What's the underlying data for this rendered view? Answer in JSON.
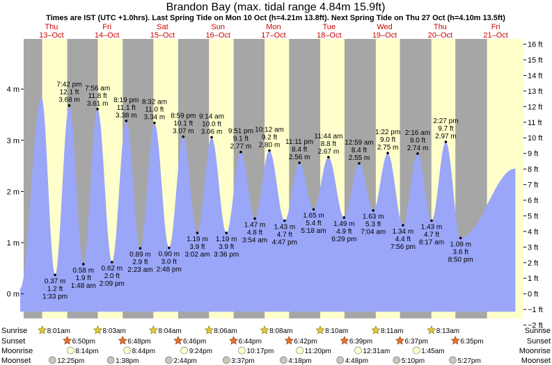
{
  "chart_data": {
    "type": "area",
    "title": "Brandon Bay (max. tidal range 4.84m 15.9ft)",
    "subtitle": "Times are IST (UTC +1.0hrs). Last Spring Tide on Mon 10 Oct (h=4.21m 13.8ft). Next Spring Tide on Thu 27 Oct (h=4.10m 13.5ft)",
    "colors": {
      "night": "#a6a6a6",
      "day": "#ffffcc",
      "tide": "#9aa6f8",
      "date": "#cc0000"
    },
    "x_domain_hours": [
      0,
      216
    ],
    "ylim_m": [
      -0.48,
      4.98
    ],
    "y_ticks_m": [
      {
        "v": 0,
        "label": "0 m"
      },
      {
        "v": 1,
        "label": "1 m"
      },
      {
        "v": 2,
        "label": "2 m"
      },
      {
        "v": 3,
        "label": "3 m"
      },
      {
        "v": 4,
        "label": "4 m"
      }
    ],
    "y_ticks_ft": [
      {
        "v": -2,
        "label": "−2 ft"
      },
      {
        "v": -1,
        "label": "−1 ft"
      },
      {
        "v": 0,
        "label": "0 ft"
      },
      {
        "v": 1,
        "label": "1 ft"
      },
      {
        "v": 2,
        "label": "2 ft"
      },
      {
        "v": 3,
        "label": "3 ft"
      },
      {
        "v": 4,
        "label": "4 ft"
      },
      {
        "v": 5,
        "label": "5 ft"
      },
      {
        "v": 6,
        "label": "6 ft"
      },
      {
        "v": 7,
        "label": "7 ft"
      },
      {
        "v": 8,
        "label": "8 ft"
      },
      {
        "v": 9,
        "label": "9 ft"
      },
      {
        "v": 10,
        "label": "10 ft"
      },
      {
        "v": 11,
        "label": "11 ft"
      },
      {
        "v": 12,
        "label": "12 ft"
      },
      {
        "v": 13,
        "label": "13 ft"
      },
      {
        "v": 14,
        "label": "14 ft"
      },
      {
        "v": 15,
        "label": "15 ft"
      },
      {
        "v": 16,
        "label": "16 ft"
      }
    ],
    "days": [
      {
        "day": "Thu",
        "date": "13–Oct",
        "noon": 12
      },
      {
        "day": "Fri",
        "date": "14–Oct",
        "noon": 36
      },
      {
        "day": "Sat",
        "date": "15–Oct",
        "noon": 60
      },
      {
        "day": "Sun",
        "date": "16–Oct",
        "noon": 84
      },
      {
        "day": "Mon",
        "date": "17–Oct",
        "noon": 108
      },
      {
        "day": "Tue",
        "date": "18–Oct",
        "noon": 132
      },
      {
        "day": "Wed",
        "date": "19–Oct",
        "noon": 156
      },
      {
        "day": "Thu",
        "date": "20–Oct",
        "noon": 180
      },
      {
        "day": "Fri",
        "date": "21–Oct",
        "noon": 204
      }
    ],
    "daylight_hours": [
      [
        8.0,
        18.82
      ],
      [
        32.05,
        42.8
      ],
      [
        56.07,
        66.77
      ],
      [
        80.1,
        90.73
      ],
      [
        104.13,
        114.7
      ],
      [
        128.17,
        138.65
      ],
      [
        152.18,
        162.62
      ],
      [
        176.22,
        186.58
      ],
      [
        200.25,
        216
      ]
    ],
    "tide_start": {
      "t": -1.5,
      "h": 0.1
    },
    "tide_end": {
      "t": 212.5,
      "h": 2.45
    },
    "tides": [
      {
        "t": 7.7,
        "h": 3.84,
        "show_label": false
      },
      {
        "t": 13.55,
        "h": 0.37,
        "m": "0.37 m",
        "ft": "1.2 ft",
        "time": "1:33 pm",
        "kind": "low"
      },
      {
        "t": 19.7,
        "h": 3.68,
        "m": "3.68 m",
        "ft": "12.1 ft",
        "time": "7:42 pm",
        "kind": "high"
      },
      {
        "t": 25.8,
        "h": 0.58,
        "m": "0.58 m",
        "ft": "1.9 ft",
        "time": "1:48 am",
        "kind": "low"
      },
      {
        "t": 31.93,
        "h": 3.61,
        "m": "3.61 m",
        "ft": "11.8 ft",
        "time": "7:56 am",
        "kind": "high"
      },
      {
        "t": 38.15,
        "h": 0.62,
        "m": "0.62 m",
        "ft": "2.0 ft",
        "time": "2:09 pm",
        "kind": "low"
      },
      {
        "t": 44.32,
        "h": 3.38,
        "m": "3.38 m",
        "ft": "11.1 ft",
        "time": "8:19 pm",
        "kind": "high"
      },
      {
        "t": 50.38,
        "h": 0.89,
        "m": "0.89 m",
        "ft": "2.9 ft",
        "time": "2:23 am",
        "kind": "low"
      },
      {
        "t": 56.53,
        "h": 3.34,
        "m": "3.34 m",
        "ft": "11.0 ft",
        "time": "8:32 am",
        "kind": "high"
      },
      {
        "t": 62.8,
        "h": 0.9,
        "m": "0.90 m",
        "ft": "3.0 ft",
        "time": "2:48 pm",
        "kind": "low"
      },
      {
        "t": 68.98,
        "h": 3.07,
        "m": "3.07 m",
        "ft": "10.1 ft",
        "time": "8:59 pm",
        "kind": "high"
      },
      {
        "t": 75.03,
        "h": 1.19,
        "m": "1.19 m",
        "ft": "3.9 ft",
        "time": "3:02 am",
        "kind": "low"
      },
      {
        "t": 81.23,
        "h": 3.06,
        "m": "3.06 m",
        "ft": "10.0 ft",
        "time": "9:14 am",
        "kind": "high"
      },
      {
        "t": 87.6,
        "h": 1.19,
        "m": "1.19 m",
        "ft": "3.9 ft",
        "time": "3:36 pm",
        "kind": "low"
      },
      {
        "t": 93.85,
        "h": 2.77,
        "m": "2.77 m",
        "ft": "9.1 ft",
        "time": "9:51 pm",
        "kind": "high"
      },
      {
        "t": 99.9,
        "h": 1.47,
        "m": "1.47 m",
        "ft": "4.8 ft",
        "time": "3:54 am",
        "kind": "low"
      },
      {
        "t": 106.2,
        "h": 2.8,
        "m": "2.80 m",
        "ft": "9.2 ft",
        "time": "10:12 am",
        "kind": "high"
      },
      {
        "t": 112.78,
        "h": 1.43,
        "m": "1.43 m",
        "ft": "4.7 ft",
        "time": "4:47 pm",
        "kind": "low"
      },
      {
        "t": 119.18,
        "h": 2.56,
        "m": "2.56 m",
        "ft": "8.4 ft",
        "time": "11:11 pm",
        "kind": "high"
      },
      {
        "t": 125.3,
        "h": 1.65,
        "m": "1.65 m",
        "ft": "5.4 ft",
        "time": "5:18 am",
        "kind": "low"
      },
      {
        "t": 131.73,
        "h": 2.67,
        "m": "2.67 m",
        "ft": "8.8 ft",
        "time": "11:44 am",
        "kind": "high"
      },
      {
        "t": 138.48,
        "h": 1.49,
        "m": "1.49 m",
        "ft": "4.9 ft",
        "time": "6:29 pm",
        "kind": "low"
      },
      {
        "t": 144.98,
        "h": 2.55,
        "m": "2.55 m",
        "ft": "8.4 ft",
        "time": "12:59 am",
        "kind": "high"
      },
      {
        "t": 151.07,
        "h": 1.63,
        "m": "1.63 m",
        "ft": "5.3 ft",
        "time": "7:04 am",
        "kind": "low"
      },
      {
        "t": 157.37,
        "h": 2.75,
        "m": "2.75 m",
        "ft": "9.0 ft",
        "time": "1:22 pm",
        "kind": "high"
      },
      {
        "t": 163.93,
        "h": 1.34,
        "m": "1.34 m",
        "ft": "4.4 ft",
        "time": "7:56 pm",
        "kind": "low"
      },
      {
        "t": 170.27,
        "h": 2.74,
        "m": "2.74 m",
        "ft": "9.0 ft",
        "time": "2:16 am",
        "kind": "high"
      },
      {
        "t": 176.28,
        "h": 1.43,
        "m": "1.43 m",
        "ft": "4.7 ft",
        "time": "8:17 am",
        "kind": "low"
      },
      {
        "t": 182.45,
        "h": 2.97,
        "m": "2.97 m",
        "ft": "9.7 ft",
        "time": "2:27 pm",
        "kind": "high"
      },
      {
        "t": 188.83,
        "h": 1.09,
        "m": "1.09 m",
        "ft": "3.6 ft",
        "time": "8:50 pm",
        "kind": "low"
      }
    ],
    "rows": {
      "sunrise": {
        "label": "Sunrise",
        "events": [
          {
            "t": 8.02,
            "text": "8:01am"
          },
          {
            "t": 32.05,
            "text": "8:03am"
          },
          {
            "t": 56.07,
            "text": "8:04am"
          },
          {
            "t": 80.1,
            "text": "8:06am"
          },
          {
            "t": 104.13,
            "text": "8:08am"
          },
          {
            "t": 128.17,
            "text": "8:10am"
          },
          {
            "t": 152.18,
            "text": "8:11am"
          },
          {
            "t": 176.22,
            "text": "8:13am"
          }
        ]
      },
      "sunset": {
        "label": "Sunset",
        "events": [
          {
            "t": 18.83,
            "text": "6:50pm"
          },
          {
            "t": 42.8,
            "text": "6:48pm"
          },
          {
            "t": 66.77,
            "text": "6:46pm"
          },
          {
            "t": 90.73,
            "text": "6:44pm"
          },
          {
            "t": 114.7,
            "text": "6:42pm"
          },
          {
            "t": 138.65,
            "text": "6:39pm"
          },
          {
            "t": 162.62,
            "text": "6:37pm"
          },
          {
            "t": 186.58,
            "text": "6:35pm"
          }
        ]
      },
      "moonrise": {
        "label": "Moonrise",
        "events": [
          {
            "t": 20.23,
            "text": "8:14pm"
          },
          {
            "t": 44.73,
            "text": "8:44pm"
          },
          {
            "t": 69.4,
            "text": "9:24pm"
          },
          {
            "t": 94.28,
            "text": "10:17pm"
          },
          {
            "t": 119.33,
            "text": "11:20pm"
          },
          {
            "t": 144.52,
            "text": "12:31am"
          },
          {
            "t": 169.75,
            "text": "1:45am"
          }
        ]
      },
      "moonset": {
        "label": "Moonset",
        "events": [
          {
            "t": 12.42,
            "text": "12:25pm"
          },
          {
            "t": 37.63,
            "text": "1:38pm"
          },
          {
            "t": 62.73,
            "text": "2:44pm"
          },
          {
            "t": 87.62,
            "text": "3:37pm"
          },
          {
            "t": 112.3,
            "text": "4:18pm"
          },
          {
            "t": 136.8,
            "text": "4:48pm"
          },
          {
            "t": 161.17,
            "text": "5:10pm"
          },
          {
            "t": 185.45,
            "text": "5:27pm"
          }
        ]
      }
    }
  }
}
